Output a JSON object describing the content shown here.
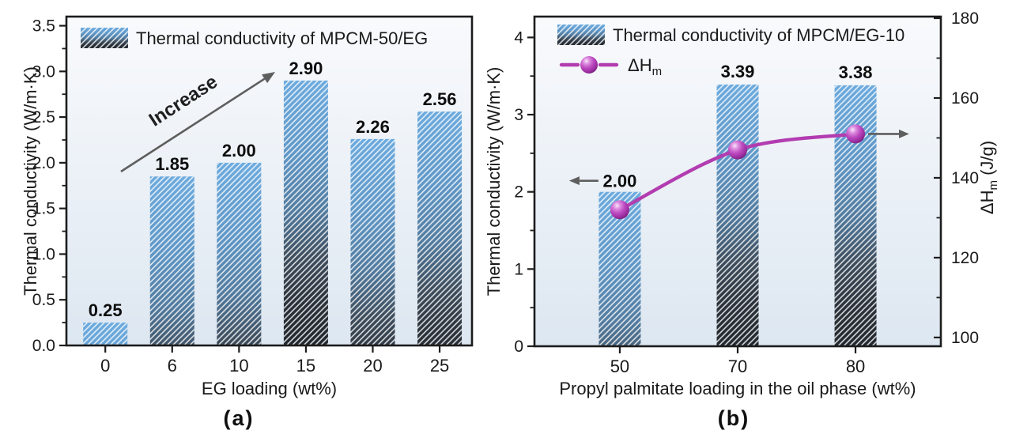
{
  "chart_data": [
    {
      "id": "a",
      "type": "bar",
      "panel_label": "(a)",
      "legend": [
        {
          "swatch": "hatched-bar",
          "label": "Thermal conductivity of MPCM-50/EG"
        }
      ],
      "categories": [
        "0",
        "6",
        "10",
        "15",
        "20",
        "25"
      ],
      "values": [
        0.25,
        1.85,
        2.0,
        2.9,
        2.26,
        2.56
      ],
      "value_labels": [
        "0.25",
        "1.85",
        "2.00",
        "2.90",
        "2.26",
        "2.56"
      ],
      "xlabel": "EG loading (wt%)",
      "ylabel": "Thermal conductivity (W/m·K)",
      "ylim": [
        0,
        3.6
      ],
      "ytick_values": [
        0,
        0.5,
        1,
        1.5,
        2,
        2.5,
        3,
        3.5
      ],
      "ytick_labels": [
        "0.0",
        "0.5",
        "1.0",
        "1.5",
        "2.0",
        "2.5",
        "3.0",
        "3.5"
      ],
      "ytick_minor_step": 0.25,
      "grid": "off",
      "annotation": {
        "text": "Increase",
        "style": "diagonal-up-arrow"
      }
    },
    {
      "id": "b",
      "type": "bar+line",
      "panel_label": "(b)",
      "legend": [
        {
          "swatch": "hatched-bar",
          "label": "Thermal conductivity of MPCM/EG-10"
        },
        {
          "swatch": "line-marker",
          "label": "ΔH",
          "label_sub": "m"
        }
      ],
      "categories": [
        "50",
        "70",
        "80"
      ],
      "values": [
        2.0,
        3.39,
        3.38
      ],
      "value_labels": [
        "2.00",
        "3.39",
        "3.38"
      ],
      "line_series": {
        "name": "ΔHm",
        "axis": "right",
        "values": [
          132,
          147,
          151
        ]
      },
      "xlabel": "Propyl palmitate loading in the oil phase (wt%)",
      "ylabel": "Thermal conductivity (W/m·K)",
      "right_ylabel": {
        "text": "ΔH",
        "sub": "m",
        "suffix": " (J/g)"
      },
      "ylim": [
        0,
        4.27
      ],
      "ytick_values": [
        0,
        1,
        2,
        3,
        4
      ],
      "ytick_labels": [
        "0",
        "1",
        "2",
        "3",
        "4"
      ],
      "ytick_minor_step": 0.5,
      "right_ylim": [
        97.8,
        180.4
      ],
      "right_ytick_values": [
        100,
        120,
        140,
        160,
        180
      ],
      "right_ytick_labels": [
        "100",
        "120",
        "140",
        "160",
        "180"
      ],
      "right_ytick_minor_step": 10,
      "grid": "off",
      "annotations": [
        {
          "name": "bars-left-axis-pointer",
          "icon": "arrow-left-icon"
        },
        {
          "name": "line-right-axis-pointer",
          "icon": "arrow-right-icon"
        }
      ]
    }
  ],
  "colors": {
    "bar_gradient_top": "#6caade",
    "bar_gradient_bottom": "#22282f",
    "hatch": "#ffffff",
    "plot_bg_top": "#f9fafc",
    "plot_bg_bottom": "#dde7f1",
    "axis": "#1c1c1c",
    "text": "#1a1a1a",
    "annotation_arrow": "#5e5e5e",
    "line": "#b23cb0",
    "marker": "#bc49c0"
  }
}
